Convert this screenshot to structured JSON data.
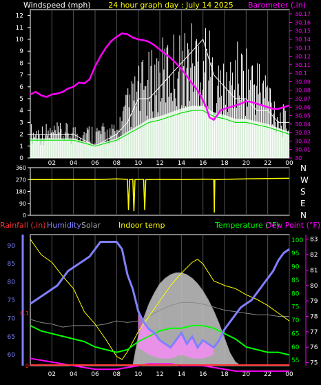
{
  "colors": {
    "background": "#000000",
    "frame": "#ffffff",
    "grid": "#555555",
    "title": "#ffff00",
    "windspeed": "#ffffff",
    "gust": "#ffffff",
    "wind_avg": "#00dd00",
    "wind_fill": "#ccffcc",
    "barometer": "#ff00ff",
    "direction": "#ffff00",
    "rainfall": "#ff3333",
    "humidity": "#8080ff",
    "solar": "#aaaaaa",
    "solar_fill": "#bbbbbb",
    "indoor_temp": "#ffff00",
    "temperature": "#00ff00",
    "dewpoint": "#ff00ff",
    "outdoor_temp": "#ffff00"
  },
  "header": {
    "windspeed_label": "Windspeed (mph)",
    "title": "24 hour graph day : July 14 2025",
    "barometer_label": "Barometer (.in)"
  },
  "legend": {
    "rainfall": "Rainfall (.in)",
    "humidity": "Humidity",
    "solar": "Solar",
    "indoor_temp": "Indoor temp",
    "temperature": "Temperature (°F)",
    "dewpoint": "Dew Point (°F)"
  },
  "compass": [
    "N",
    "W",
    "S",
    "E",
    "N"
  ],
  "chart_data": [
    {
      "type": "line",
      "x_ticks": [
        "02",
        "04",
        "06",
        "08",
        "10",
        "12",
        "14",
        "16",
        "18",
        "20",
        "22",
        "00"
      ],
      "xlim": [
        0,
        24
      ],
      "y_left_ticks": [
        "0",
        "1",
        "2",
        "3",
        "4",
        "5",
        "6",
        "7",
        "8",
        "9",
        "10",
        "11",
        "12"
      ],
      "ylim_left": [
        0,
        12.5
      ],
      "y_right_ticks": [
        "30",
        "30.01",
        "30.02",
        "30.03",
        "30.04",
        "30.05",
        "30.06",
        "30.07",
        "30.08",
        "30.09",
        "30.1",
        "30.11",
        "30.12",
        "30.13",
        "30.14",
        "30.15",
        "30.16",
        "30.17"
      ],
      "ylim_right": [
        30.0,
        30.175
      ],
      "series": [
        {
          "key": "barometer",
          "x": [
            0,
            0.5,
            1,
            1.5,
            2,
            2.5,
            3,
            3.5,
            4,
            4.5,
            5,
            5.5,
            6,
            6.5,
            7,
            7.5,
            8,
            8.5,
            9,
            9.5,
            10,
            10.5,
            11,
            11.5,
            12,
            12.5,
            13,
            13.5,
            14,
            14.5,
            15,
            15.5,
            16,
            16.3,
            16.6,
            17,
            17.4,
            17.6,
            18,
            18.5,
            19,
            19.5,
            20,
            20.5,
            21,
            21.5,
            22,
            22.5,
            23,
            23.5,
            24
          ],
          "y": [
            30.075,
            30.078,
            30.074,
            30.072,
            30.075,
            30.076,
            30.078,
            30.082,
            30.084,
            30.089,
            30.088,
            30.093,
            30.108,
            30.12,
            30.13,
            30.138,
            30.143,
            30.147,
            30.146,
            30.142,
            30.14,
            30.139,
            30.137,
            30.133,
            30.128,
            30.123,
            30.118,
            30.112,
            30.105,
            30.097,
            30.088,
            30.08,
            30.068,
            30.06,
            30.048,
            30.045,
            30.052,
            30.056,
            30.058,
            30.06,
            30.062,
            30.064,
            30.067,
            30.066,
            30.064,
            30.062,
            30.06,
            30.058,
            30.058,
            30.06,
            30.062
          ]
        },
        {
          "key": "windspeed",
          "x": [
            0,
            2,
            4,
            6,
            8,
            9,
            10,
            11,
            12,
            13,
            14,
            15,
            16,
            17,
            18,
            19,
            20,
            21,
            22,
            23,
            24
          ],
          "y": [
            2,
            2,
            2,
            1,
            2,
            3,
            5,
            5,
            6,
            7,
            8,
            9,
            10,
            7,
            6,
            5,
            5,
            4,
            4,
            3,
            3
          ]
        },
        {
          "key": "gust",
          "x": [
            0,
            2,
            4,
            6,
            8,
            9,
            10,
            11,
            12,
            13,
            14,
            15,
            16,
            16.3,
            17,
            18,
            19,
            20,
            21,
            22,
            23,
            24
          ],
          "y": [
            3,
            3,
            3,
            3,
            3,
            6,
            8,
            9,
            10,
            11,
            11,
            12,
            12,
            12.5,
            9,
            8,
            10,
            10,
            9,
            8,
            5,
            4
          ]
        },
        {
          "key": "wind_avg",
          "x": [
            0,
            2,
            4,
            6,
            8,
            9,
            10,
            11,
            12,
            13,
            14,
            15,
            16,
            17,
            18,
            19,
            20,
            21,
            22,
            23,
            24
          ],
          "y": [
            1.5,
            1.5,
            1.5,
            1,
            1.5,
            2,
            2.5,
            3,
            3.2,
            3.5,
            3.8,
            4,
            4,
            3.5,
            3.3,
            3,
            3,
            2.8,
            2.6,
            2.3,
            2
          ]
        }
      ]
    },
    {
      "type": "line",
      "x_ticks": [
        "02",
        "04",
        "06",
        "08",
        "10",
        "12",
        "14",
        "16",
        "18",
        "20",
        "22",
        "00"
      ],
      "xlim": [
        0,
        24
      ],
      "y_ticks": [
        "360",
        "270",
        "180",
        "90",
        "0"
      ],
      "ylim": [
        0,
        360
      ],
      "series": [
        {
          "key": "direction",
          "x": [
            0,
            2,
            4,
            6,
            8,
            9,
            9.1,
            9.2,
            9.5,
            9.6,
            9.7,
            10.5,
            10.6,
            10.7,
            12,
            14,
            16,
            17,
            17.05,
            17.1,
            18,
            20,
            22,
            24
          ],
          "y": [
            270,
            270,
            272,
            270,
            275,
            272,
            40,
            270,
            272,
            30,
            270,
            272,
            40,
            270,
            272,
            270,
            273,
            272,
            20,
            270,
            272,
            275,
            278,
            280
          ]
        }
      ]
    },
    {
      "type": "line",
      "x_ticks": [
        "02",
        "04",
        "06",
        "08",
        "10",
        "12",
        "14",
        "16",
        "18",
        "20",
        "22",
        "00"
      ],
      "xlim": [
        0,
        24
      ],
      "y_humidity_ticks": [
        "60",
        "65",
        "70",
        "75",
        "80",
        "85",
        "90"
      ],
      "ylim_humidity": [
        57,
        93
      ],
      "y_rain_ticks": [
        "0",
        "0.1"
      ],
      "ylim_rain": [
        0,
        0.25
      ],
      "y_temp_ticks": [
        "55",
        "60",
        "65",
        "70",
        "75",
        "80",
        "85",
        "90",
        "95",
        "100"
      ],
      "ylim_temp": [
        53,
        102
      ],
      "y_dew_ticks": [
        "75",
        "76",
        "77",
        "78",
        "79",
        "80",
        "81",
        "82",
        "83"
      ],
      "ylim_dew": [
        74.8,
        83.3
      ],
      "series": [
        {
          "key": "solar",
          "x": [
            9.5,
            10,
            10.5,
            11,
            11.5,
            12,
            12.5,
            13,
            13.5,
            14,
            14.5,
            15,
            15.5,
            16,
            16.5,
            17,
            17.5,
            18,
            18.5,
            19,
            19.5
          ],
          "y": [
            57,
            65,
            70,
            74,
            77,
            79.5,
            81,
            82,
            82.5,
            82.5,
            82,
            81,
            79.5,
            77.5,
            75,
            72,
            68.5,
            64.5,
            60.5,
            58,
            57
          ],
          "axis": "humidity"
        },
        {
          "key": "humidity",
          "x": [
            0,
            0.5,
            1,
            1.5,
            2,
            2.5,
            3,
            3.5,
            4,
            4.5,
            5,
            5.5,
            6,
            6.5,
            7,
            7.5,
            8,
            8.5,
            9,
            9.5,
            10,
            10.5,
            11,
            11.5,
            12,
            12.5,
            13,
            13.5,
            14,
            14.5,
            15,
            15.5,
            16,
            16.5,
            17,
            17.5,
            18,
            18.5,
            19,
            19.5,
            20,
            20.5,
            21,
            21.5,
            22,
            22.5,
            23,
            23.5,
            24
          ],
          "y": [
            74,
            75,
            76,
            77,
            78,
            79,
            81,
            83,
            84,
            85,
            86,
            87,
            89,
            91,
            91,
            91,
            91,
            89,
            82,
            78,
            72,
            69,
            67,
            66,
            64,
            63,
            62,
            64,
            66,
            63,
            65,
            62,
            64,
            63,
            62,
            64,
            67,
            69,
            71,
            73,
            74,
            75,
            77,
            79,
            81,
            83,
            86,
            88,
            89
          ],
          "axis": "humidity"
        },
        {
          "key": "humidity_band",
          "x": [
            10,
            11,
            12,
            13,
            14,
            15,
            16,
            17
          ],
          "y": [
            62,
            60,
            59,
            59,
            60,
            59,
            59,
            60
          ],
          "axis": "humidity"
        },
        {
          "key": "indoor_temp",
          "x": [
            0,
            1,
            2,
            3,
            4,
            5,
            6,
            7,
            8,
            9,
            10,
            11,
            12,
            13,
            14,
            15,
            16,
            17,
            18,
            19,
            20,
            21,
            22,
            23,
            24
          ],
          "y": [
            77.8,
            77.6,
            77.5,
            77.3,
            77.4,
            77.4,
            77.4,
            77.5,
            77.7,
            77.6,
            77.7,
            78,
            78.4,
            78.7,
            78.9,
            78.9,
            78.8,
            78.6,
            78.4,
            78.3,
            78.2,
            78.1,
            78.1,
            78,
            78
          ],
          "axis": "dew"
        },
        {
          "key": "temperature",
          "x": [
            0,
            1,
            2,
            3,
            4,
            5,
            6,
            7,
            8,
            9,
            10,
            11,
            12,
            13,
            14,
            15,
            16,
            17,
            18,
            19,
            20,
            21,
            22,
            23,
            24
          ],
          "y": [
            68,
            66,
            65,
            64,
            63,
            62,
            60,
            59,
            58,
            59,
            62,
            64,
            66,
            67,
            67,
            68,
            68,
            67,
            65,
            63,
            60,
            59,
            58,
            58,
            57
          ],
          "axis": "temp"
        },
        {
          "key": "outdoor_temp",
          "x": [
            0,
            1,
            2,
            3,
            4,
            5,
            6,
            7,
            8,
            8.5,
            9,
            10,
            11,
            12,
            13,
            14,
            15,
            15.5,
            16,
            17,
            18,
            19,
            20,
            21,
            22,
            23,
            24
          ],
          "y": [
            83,
            82,
            81.5,
            80.6,
            79.8,
            78.3,
            77.5,
            76.5,
            75.4,
            75.2,
            75.7,
            77,
            78,
            79,
            80,
            80.8,
            81.5,
            81.7,
            81.4,
            80.3,
            80,
            79.8,
            79.4,
            79.1,
            78.7,
            78.2,
            77.7
          ],
          "axis": "dew"
        },
        {
          "key": "dewpoint",
          "x": [
            0,
            1,
            2,
            3,
            4,
            5,
            6,
            7,
            8,
            9,
            10,
            11,
            12,
            13,
            14,
            15,
            16,
            17,
            18,
            19,
            20,
            21,
            22,
            23,
            24
          ],
          "y": [
            59,
            58.5,
            58,
            57.5,
            57,
            56.5,
            56,
            56,
            56,
            56.5,
            57,
            57.5,
            57.5,
            57.5,
            57,
            57,
            57,
            56.5,
            56,
            55.5,
            55.5,
            55.5,
            55.5,
            55.5,
            55.5
          ],
          "axis": "humidity"
        },
        {
          "key": "rainfall",
          "x": [
            0,
            24
          ],
          "y": [
            0,
            0
          ],
          "axis": "rain"
        }
      ]
    }
  ]
}
